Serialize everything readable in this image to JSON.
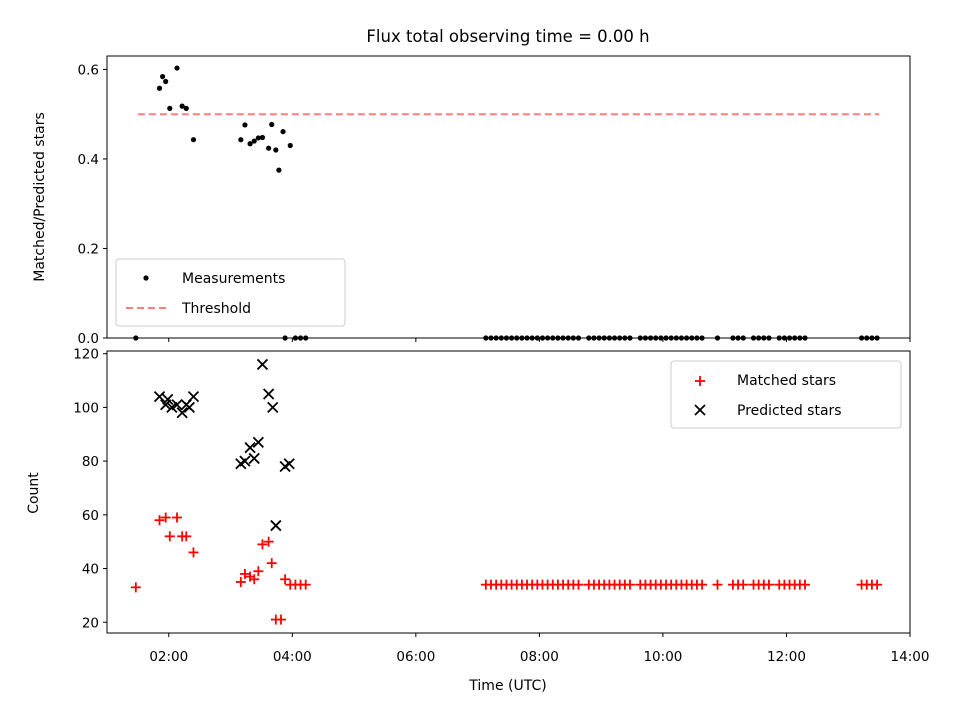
{
  "chart_data": [
    {
      "type": "scatter",
      "title": "Flux total observing time = 0.00 h",
      "xlabel": "",
      "ylabel": "Matched/Predicted stars",
      "xlim": [
        "01:00",
        "14:00"
      ],
      "ylim": [
        0,
        0.63
      ],
      "yticks": [
        "0.0",
        "0.2",
        "0.4",
        "0.6"
      ],
      "threshold": {
        "value": 0.5,
        "x_range": [
          "01:30",
          "13:30"
        ],
        "color": "#ff7f7f",
        "style": "dashed",
        "name": "Threshold"
      },
      "series": [
        {
          "name": "Measurements",
          "marker": "dot",
          "color": "#000000",
          "points": [
            [
              "01:51",
              0.558
            ],
            [
              "01:54",
              0.584
            ],
            [
              "01:57",
              0.573
            ],
            [
              "02:01",
              0.513
            ],
            [
              "02:08",
              0.603
            ],
            [
              "02:13",
              0.518
            ],
            [
              "02:17",
              0.513
            ],
            [
              "02:24",
              0.443
            ],
            [
              "03:10",
              0.443
            ],
            [
              "03:14",
              0.476
            ],
            [
              "03:19",
              0.434
            ],
            [
              "03:23",
              0.44
            ],
            [
              "03:27",
              0.447
            ],
            [
              "03:31",
              0.448
            ],
            [
              "03:37",
              0.424
            ],
            [
              "03:40",
              0.477
            ],
            [
              "03:44",
              0.42
            ],
            [
              "03:47",
              0.375
            ],
            [
              "03:51",
              0.461
            ],
            [
              "03:58",
              0.43
            ],
            [
              "01:28",
              0.0
            ],
            [
              "03:53",
              0.0
            ],
            [
              "04:03",
              0.0
            ],
            [
              "04:08",
              0.0
            ],
            [
              "04:13",
              0.0
            ],
            [
              "07:08",
              0.0
            ],
            [
              "07:13",
              0.0
            ],
            [
              "07:18",
              0.0
            ],
            [
              "07:23",
              0.0
            ],
            [
              "07:28",
              0.0
            ],
            [
              "07:33",
              0.0
            ],
            [
              "07:38",
              0.0
            ],
            [
              "07:43",
              0.0
            ],
            [
              "07:48",
              0.0
            ],
            [
              "07:53",
              0.0
            ],
            [
              "07:58",
              0.0
            ],
            [
              "08:03",
              0.0
            ],
            [
              "08:08",
              0.0
            ],
            [
              "08:13",
              0.0
            ],
            [
              "08:18",
              0.0
            ],
            [
              "08:23",
              0.0
            ],
            [
              "08:28",
              0.0
            ],
            [
              "08:33",
              0.0
            ],
            [
              "08:38",
              0.0
            ],
            [
              "08:48",
              0.0
            ],
            [
              "08:53",
              0.0
            ],
            [
              "08:58",
              0.0
            ],
            [
              "09:03",
              0.0
            ],
            [
              "09:08",
              0.0
            ],
            [
              "09:13",
              0.0
            ],
            [
              "09:18",
              0.0
            ],
            [
              "09:23",
              0.0
            ],
            [
              "09:28",
              0.0
            ],
            [
              "09:38",
              0.0
            ],
            [
              "09:43",
              0.0
            ],
            [
              "09:48",
              0.0
            ],
            [
              "09:53",
              0.0
            ],
            [
              "09:58",
              0.0
            ],
            [
              "10:03",
              0.0
            ],
            [
              "10:08",
              0.0
            ],
            [
              "10:13",
              0.0
            ],
            [
              "10:18",
              0.0
            ],
            [
              "10:23",
              0.0
            ],
            [
              "10:28",
              0.0
            ],
            [
              "10:33",
              0.0
            ],
            [
              "10:38",
              0.0
            ],
            [
              "10:53",
              0.0
            ],
            [
              "11:08",
              0.0
            ],
            [
              "11:13",
              0.0
            ],
            [
              "11:18",
              0.0
            ],
            [
              "11:28",
              0.0
            ],
            [
              "11:33",
              0.0
            ],
            [
              "11:38",
              0.0
            ],
            [
              "11:43",
              0.0
            ],
            [
              "11:53",
              0.0
            ],
            [
              "11:58",
              0.0
            ],
            [
              "12:03",
              0.0
            ],
            [
              "12:08",
              0.0
            ],
            [
              "12:13",
              0.0
            ],
            [
              "12:18",
              0.0
            ],
            [
              "13:13",
              0.0
            ],
            [
              "13:18",
              0.0
            ],
            [
              "13:23",
              0.0
            ],
            [
              "13:28",
              0.0
            ]
          ]
        }
      ],
      "legend": {
        "placement": "lower-left",
        "entries": [
          "Measurements",
          "Threshold"
        ]
      }
    },
    {
      "type": "scatter",
      "title": "",
      "xlabel": "Time (UTC)",
      "ylabel": "Count",
      "xlim": [
        "01:00",
        "14:00"
      ],
      "xticks": [
        "02:00",
        "04:00",
        "06:00",
        "08:00",
        "10:00",
        "12:00",
        "14:00"
      ],
      "ylim": [
        16,
        121
      ],
      "yticks": [
        "20",
        "40",
        "60",
        "80",
        "100",
        "120"
      ],
      "series": [
        {
          "name": "Matched stars",
          "marker": "plus",
          "color": "#ff0000",
          "points": [
            [
              "01:28",
              33
            ],
            [
              "01:51",
              58
            ],
            [
              "01:57",
              59
            ],
            [
              "02:01",
              52
            ],
            [
              "02:08",
              59
            ],
            [
              "02:13",
              52
            ],
            [
              "02:17",
              52
            ],
            [
              "02:24",
              46
            ],
            [
              "03:10",
              35
            ],
            [
              "03:14",
              38
            ],
            [
              "03:19",
              37
            ],
            [
              "03:23",
              36
            ],
            [
              "03:27",
              39
            ],
            [
              "03:31",
              49
            ],
            [
              "03:37",
              50
            ],
            [
              "03:40",
              42
            ],
            [
              "03:44",
              21
            ],
            [
              "03:49",
              21
            ],
            [
              "03:53",
              36
            ],
            [
              "03:58",
              34
            ],
            [
              "04:03",
              34
            ],
            [
              "04:08",
              34
            ],
            [
              "04:13",
              34
            ],
            [
              "07:08",
              34
            ],
            [
              "07:13",
              34
            ],
            [
              "07:18",
              34
            ],
            [
              "07:23",
              34
            ],
            [
              "07:28",
              34
            ],
            [
              "07:33",
              34
            ],
            [
              "07:38",
              34
            ],
            [
              "07:43",
              34
            ],
            [
              "07:48",
              34
            ],
            [
              "07:53",
              34
            ],
            [
              "07:58",
              34
            ],
            [
              "08:03",
              34
            ],
            [
              "08:08",
              34
            ],
            [
              "08:13",
              34
            ],
            [
              "08:18",
              34
            ],
            [
              "08:23",
              34
            ],
            [
              "08:28",
              34
            ],
            [
              "08:33",
              34
            ],
            [
              "08:38",
              34
            ],
            [
              "08:48",
              34
            ],
            [
              "08:53",
              34
            ],
            [
              "08:58",
              34
            ],
            [
              "09:03",
              34
            ],
            [
              "09:08",
              34
            ],
            [
              "09:13",
              34
            ],
            [
              "09:18",
              34
            ],
            [
              "09:23",
              34
            ],
            [
              "09:28",
              34
            ],
            [
              "09:38",
              34
            ],
            [
              "09:43",
              34
            ],
            [
              "09:48",
              34
            ],
            [
              "09:53",
              34
            ],
            [
              "09:58",
              34
            ],
            [
              "10:03",
              34
            ],
            [
              "10:08",
              34
            ],
            [
              "10:13",
              34
            ],
            [
              "10:18",
              34
            ],
            [
              "10:23",
              34
            ],
            [
              "10:28",
              34
            ],
            [
              "10:33",
              34
            ],
            [
              "10:38",
              34
            ],
            [
              "10:53",
              34
            ],
            [
              "11:08",
              34
            ],
            [
              "11:13",
              34
            ],
            [
              "11:18",
              34
            ],
            [
              "11:28",
              34
            ],
            [
              "11:33",
              34
            ],
            [
              "11:38",
              34
            ],
            [
              "11:43",
              34
            ],
            [
              "11:53",
              34
            ],
            [
              "11:58",
              34
            ],
            [
              "12:03",
              34
            ],
            [
              "12:08",
              34
            ],
            [
              "12:13",
              34
            ],
            [
              "12:18",
              34
            ],
            [
              "13:13",
              34
            ],
            [
              "13:18",
              34
            ],
            [
              "13:23",
              34
            ],
            [
              "13:28",
              34
            ]
          ]
        },
        {
          "name": "Predicted stars",
          "marker": "x",
          "color": "#000000",
          "points": [
            [
              "01:51",
              104
            ],
            [
              "01:57",
              101
            ],
            [
              "01:59",
              103
            ],
            [
              "02:03",
              100
            ],
            [
              "02:08",
              101
            ],
            [
              "02:13",
              98
            ],
            [
              "02:17",
              101
            ],
            [
              "02:20",
              100
            ],
            [
              "02:24",
              104
            ],
            [
              "03:10",
              79
            ],
            [
              "03:14",
              80
            ],
            [
              "03:19",
              85
            ],
            [
              "03:23",
              81
            ],
            [
              "03:27",
              87
            ],
            [
              "03:31",
              116
            ],
            [
              "03:37",
              105
            ],
            [
              "03:41",
              100
            ],
            [
              "03:44",
              56
            ],
            [
              "03:53",
              78
            ],
            [
              "03:57",
              79
            ]
          ]
        }
      ],
      "legend": {
        "placement": "upper-right",
        "entries": [
          "Matched stars",
          "Predicted stars"
        ]
      }
    }
  ]
}
